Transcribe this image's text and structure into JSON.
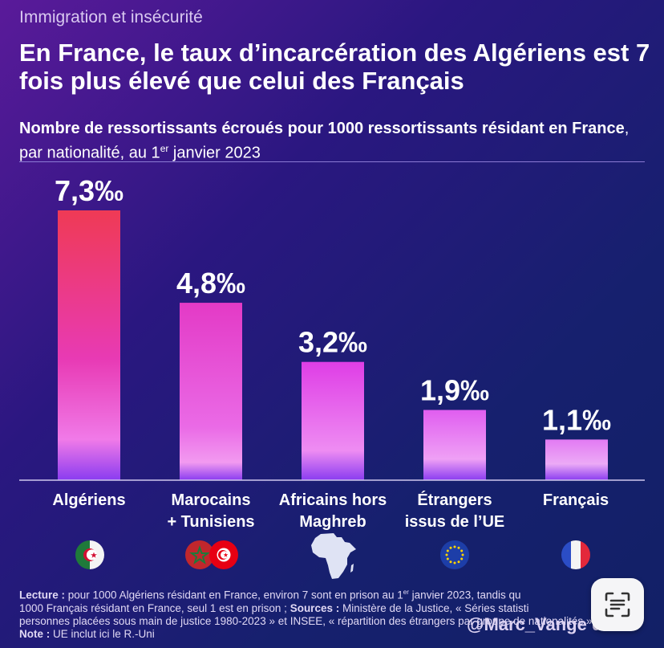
{
  "header": {
    "kicker": "Immigration et insécurité",
    "title": "En France, le taux d’incarcération des Algériens est 7 fois plus élevé que celui des Français",
    "subtitle_strong": "Nombre de ressortissants écroués pour 1000 ressortissants résidant en France",
    "subtitle_rest": ", par nationalité, au 1",
    "subtitle_sup": "er",
    "subtitle_end": " janvier 2023"
  },
  "chart_data": {
    "type": "bar",
    "categories": [
      "Algériens",
      "Marocains + Tunisiens",
      "Africains hors Maghreb",
      "Étrangers issus de l’UE",
      "Français"
    ],
    "values": [
      7.3,
      4.8,
      3.2,
      1.9,
      1.1
    ],
    "value_labels": [
      "7,3‰",
      "4,8‰",
      "3,2‰",
      "1,9‰",
      "1,1‰"
    ],
    "label_lines": [
      [
        "Algériens"
      ],
      [
        "Marocains",
        "+ Tunisiens"
      ],
      [
        "Africains hors",
        "Maghreb"
      ],
      [
        "Étrangers",
        "issus de l’UE"
      ],
      [
        "Français"
      ]
    ],
    "ylim": [
      0,
      7.3
    ],
    "grid": false,
    "colors": {
      "top_red": "#ee3a5e",
      "top_pink": "#e23ad8",
      "bottom_purple": "#8a3cf0"
    }
  },
  "flags": [
    "algeria-flag-icon",
    "morocco-tunisia-flags-icon",
    "africa-map-icon",
    "eu-flag-icon",
    "france-flag-icon"
  ],
  "footnote": {
    "lecture_label": "Lecture :",
    "lecture_text": " pour 1000 Algériens résidant en France, environ 7 sont en prison au 1",
    "lecture_sup": "er",
    "lecture_text2": " janvier 2023, tandis qu",
    "lecture_text3": "1000 Français résidant en France, seul 1 est en prison ; ",
    "sources_label": "Sources :",
    "sources_text": " Ministère de la Justice, « Séries statisti",
    "sources_text2": "personnes placées sous main de justice 1980-2023 » et INSEE, « répartition des étrangers par groupe de nationalités » ; ",
    "note_label": "Note :",
    "note_text": " UE inclut ici le R.-Uni"
  },
  "handle": "@Marc_Vange    d"
}
